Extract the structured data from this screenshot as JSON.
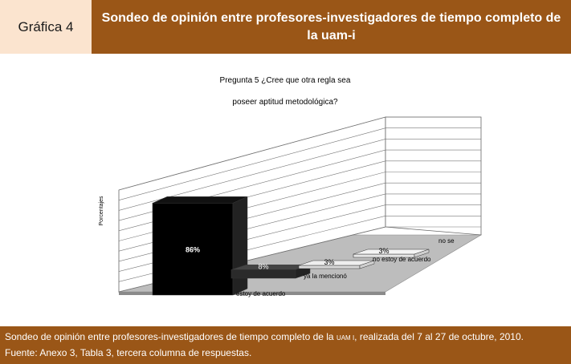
{
  "header": {
    "label": "Gráfica 4",
    "title": "Sondeo de opinión entre profesores-investigadores de tiempo completo de la uam-i"
  },
  "chart_data": {
    "type": "bar",
    "title_line1": "Pregunta 5 ¿Cree que otra regla sea",
    "title_line2": "poseer aptitud metodológica?",
    "ylabel": "Porcentajes",
    "categories": [
      "estoy de acuerdo",
      "ya la mencionó",
      "no estoy de acuerdo",
      "no se"
    ],
    "values": [
      86,
      8,
      3,
      3
    ],
    "value_labels": [
      "86%",
      "8%",
      "3%",
      "3%"
    ],
    "ylim": [
      0,
      100
    ],
    "grid": true
  },
  "footer": {
    "line1_a": "Sondeo de opinión entre profesores-investigadores de tiempo completo de la",
    "line1_small": "UAM I",
    "line1_b": ", realizada del 7 al 27 de octubre, 2010.",
    "line2": "Fuente: Anexo 3, Tabla 3, tercera columna de respuestas."
  },
  "colors": {
    "header_brown": "#9a5617",
    "header_label_bg": "#fbe4cf"
  }
}
